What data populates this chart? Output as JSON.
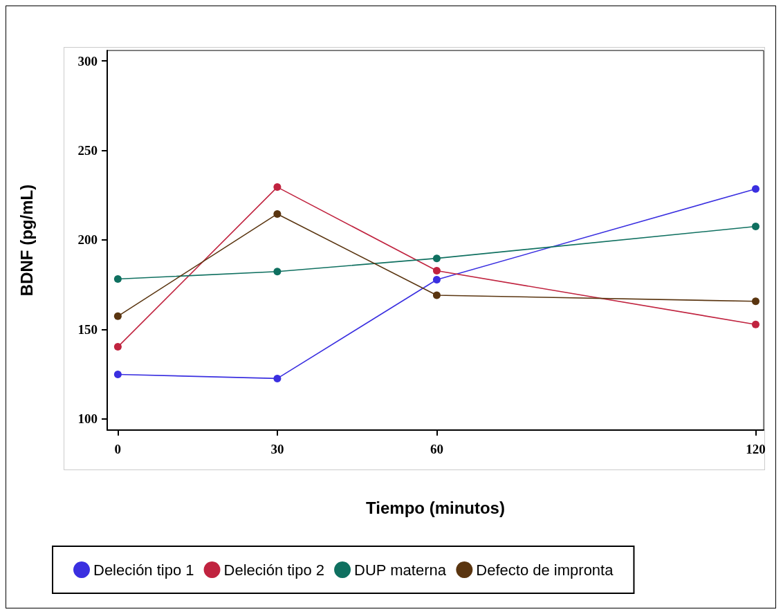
{
  "chart_data": {
    "type": "line",
    "xlabel": "Tiempo (minutos)",
    "ylabel": "BDNF (pg/mL)",
    "x": [
      0,
      30,
      60,
      120
    ],
    "xlim": [
      -2,
      121.5
    ],
    "xticks": [
      0,
      30,
      60,
      120
    ],
    "ylim": [
      93.8,
      305.8
    ],
    "yticks": [
      100,
      150,
      200,
      250,
      300
    ],
    "grid": false,
    "legend": "bottom",
    "marker": "circle",
    "line_style": "solid",
    "series": [
      {
        "name": "Deleción tipo 1",
        "color": "#3a2fe0",
        "values": [
          124.9,
          122.6,
          177.8,
          228.5
        ]
      },
      {
        "name": "Deleción tipo 2",
        "color": "#c0233f",
        "values": [
          140.3,
          229.5,
          182.8,
          152.8
        ]
      },
      {
        "name": "DUP materna",
        "color": "#0f7060",
        "values": [
          178.2,
          182.3,
          189.7,
          207.5
        ]
      },
      {
        "name": "Defecto de impronta",
        "color": "#5a3510",
        "values": [
          157.4,
          214.5,
          169.1,
          165.7
        ]
      }
    ]
  }
}
